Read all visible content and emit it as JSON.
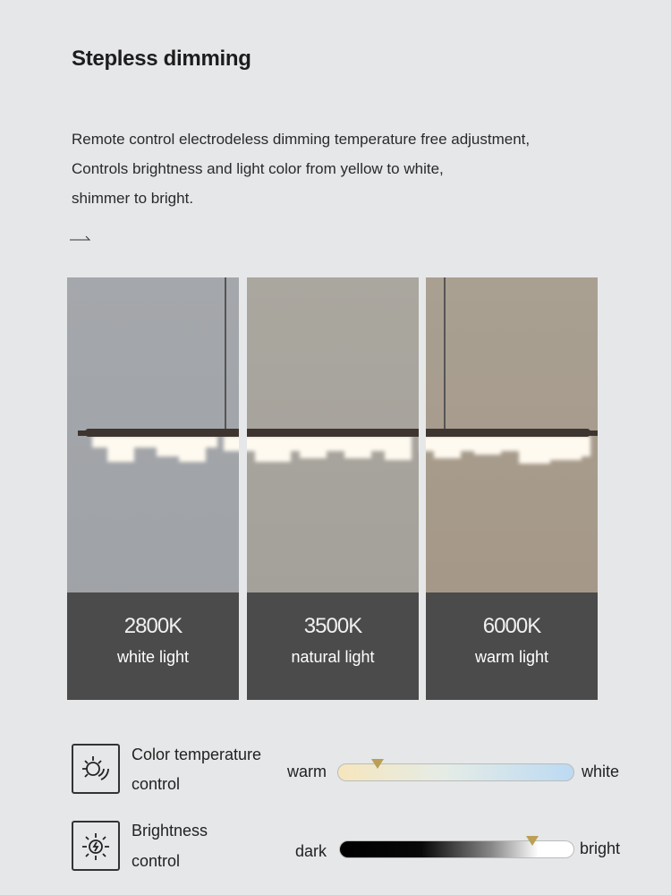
{
  "title": "Stepless dimming",
  "description": [
    "Remote control electrodeless dimming temperature free adjustment,",
    "Controls brightness and light color from yellow to white,",
    "shimmer to bright."
  ],
  "panels": [
    {
      "kelvin": "2800K",
      "name": "white light",
      "bg": "#a5a8ac"
    },
    {
      "kelvin": "3500K",
      "name": "natural light",
      "bg": "#a8a59f"
    },
    {
      "kelvin": "6000K",
      "name": "warm light",
      "bg": "#a89b8c"
    }
  ],
  "controls": {
    "color": {
      "label1": "Color temperature",
      "label2": "control",
      "left": "warm",
      "right": "white",
      "level": 0.17,
      "icon": "sun-waves-icon"
    },
    "brightness": {
      "label1": "Brightness",
      "label2": "control",
      "left": "dark",
      "right": "bright",
      "level": 0.82,
      "icon": "sun-bolt-icon"
    }
  },
  "colors": {
    "marker": "#b9a055",
    "caption_bg": "#4b4b4b"
  }
}
